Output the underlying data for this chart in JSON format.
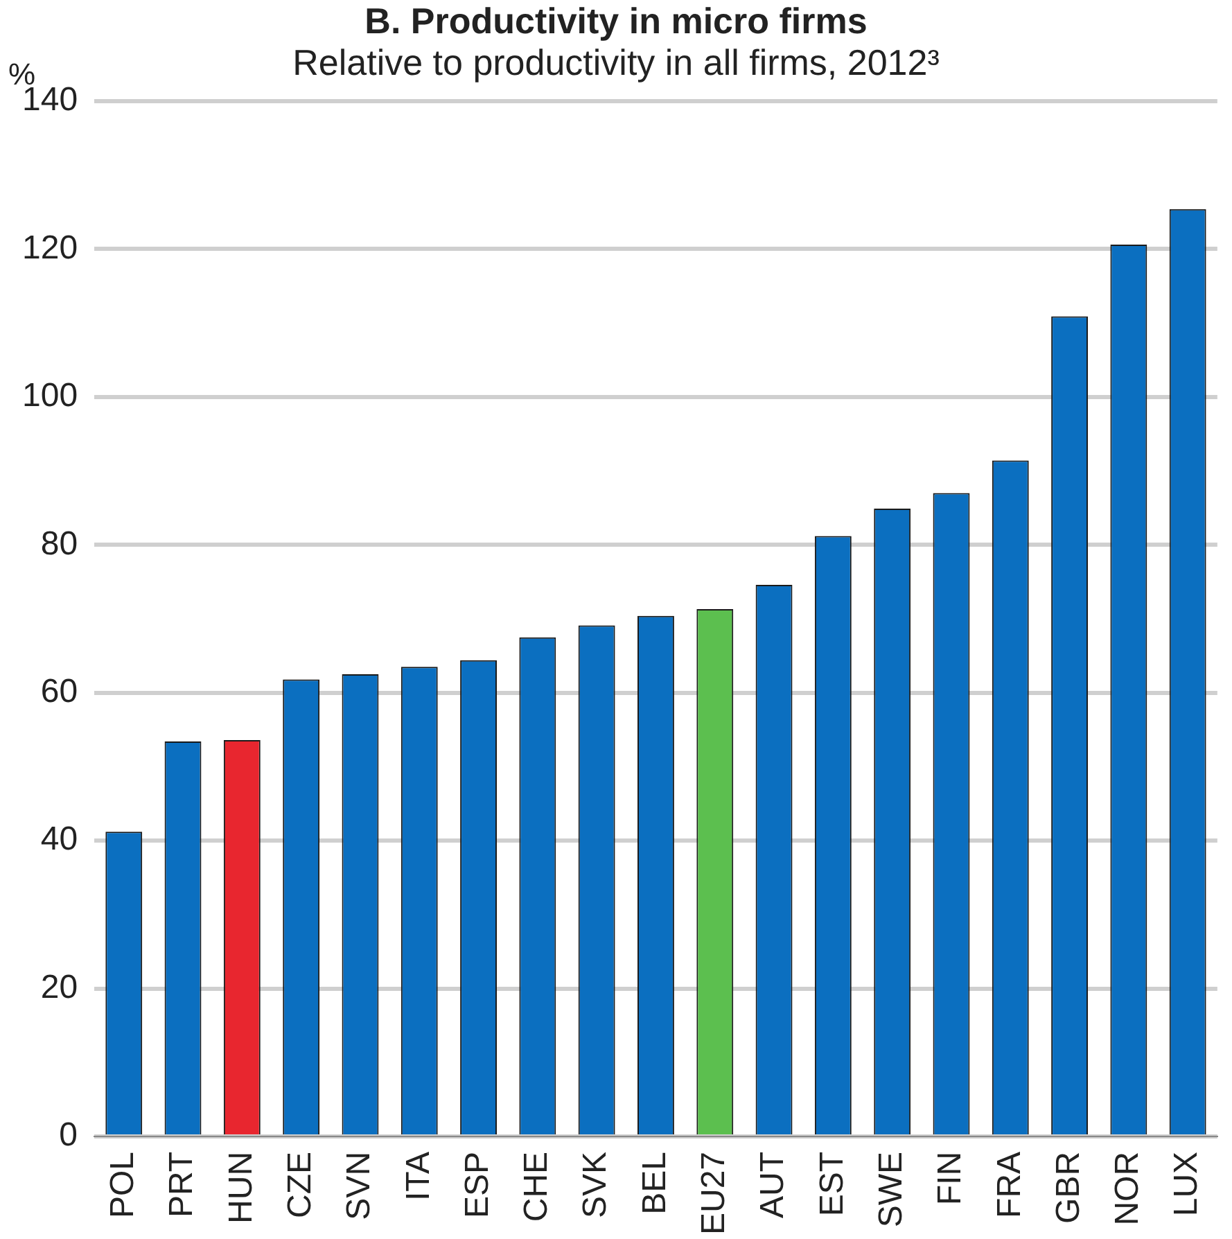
{
  "chart_data": {
    "type": "bar",
    "title": "B. Productivity in micro firms",
    "subtitle": "Relative to productivity in all firms, 2012³",
    "ylabel": "%",
    "categories": [
      "POL",
      "PRT",
      "HUN",
      "CZE",
      "SVN",
      "ITA",
      "ESP",
      "CHE",
      "SVK",
      "BEL",
      "EU27",
      "AUT",
      "EST",
      "SWE",
      "FIN",
      "FRA",
      "GBR",
      "NOR",
      "LUX"
    ],
    "values": [
      41.2,
      53.4,
      53.6,
      61.8,
      62.5,
      63.5,
      64.4,
      67.5,
      69.1,
      70.4,
      71.3,
      74.6,
      81.2,
      84.9,
      87.0,
      91.4,
      110.9,
      120.6,
      125.4
    ],
    "colors": [
      "#0b6fc0",
      "#0b6fc0",
      "#e8262f",
      "#0b6fc0",
      "#0b6fc0",
      "#0b6fc0",
      "#0b6fc0",
      "#0b6fc0",
      "#0b6fc0",
      "#0b6fc0",
      "#5cbf4f",
      "#0b6fc0",
      "#0b6fc0",
      "#0b6fc0",
      "#0b6fc0",
      "#0b6fc0",
      "#0b6fc0",
      "#0b6fc0",
      "#0b6fc0"
    ],
    "ylim": [
      0,
      140
    ],
    "yticks": [
      0,
      20,
      40,
      60,
      80,
      100,
      120,
      140
    ],
    "grid": "y"
  }
}
